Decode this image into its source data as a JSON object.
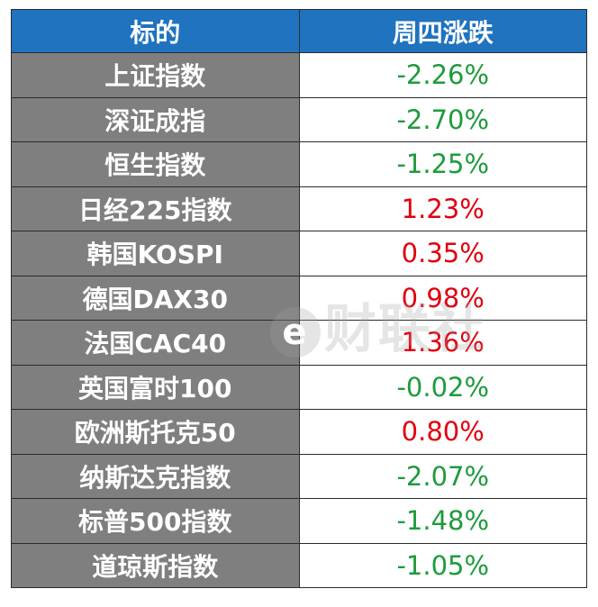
{
  "header": {
    "col1": "标的",
    "col2": "周四涨跌"
  },
  "colors": {
    "header_bg": "#1f73bf",
    "name_bg": "#7f7f7f",
    "up": "#e0000f",
    "down": "#1e9b3c"
  },
  "rows": [
    {
      "name": "上证指数",
      "change": "-2.26%",
      "dir": "down"
    },
    {
      "name": "深证成指",
      "change": "-2.70%",
      "dir": "down"
    },
    {
      "name": "恒生指数",
      "change": "-1.25%",
      "dir": "down"
    },
    {
      "name": "日经225指数",
      "change": "1.23%",
      "dir": "up"
    },
    {
      "name": "韩国KOSPI",
      "change": "0.35%",
      "dir": "up"
    },
    {
      "name": "德国DAX30",
      "change": "0.98%",
      "dir": "up"
    },
    {
      "name": "法国CAC40",
      "change": "1.36%",
      "dir": "up"
    },
    {
      "name": "英国富时100",
      "change": "-0.02%",
      "dir": "down"
    },
    {
      "name": "欧洲斯托克50",
      "change": "0.80%",
      "dir": "up"
    },
    {
      "name": "纳斯达克指数",
      "change": "-2.07%",
      "dir": "down"
    },
    {
      "name": "标普500指数",
      "change": "-1.48%",
      "dir": "down"
    },
    {
      "name": "道琼斯指数",
      "change": "-1.05%",
      "dir": "down"
    }
  ],
  "watermark": {
    "logo_glyph": "e",
    "text": "财联社"
  }
}
